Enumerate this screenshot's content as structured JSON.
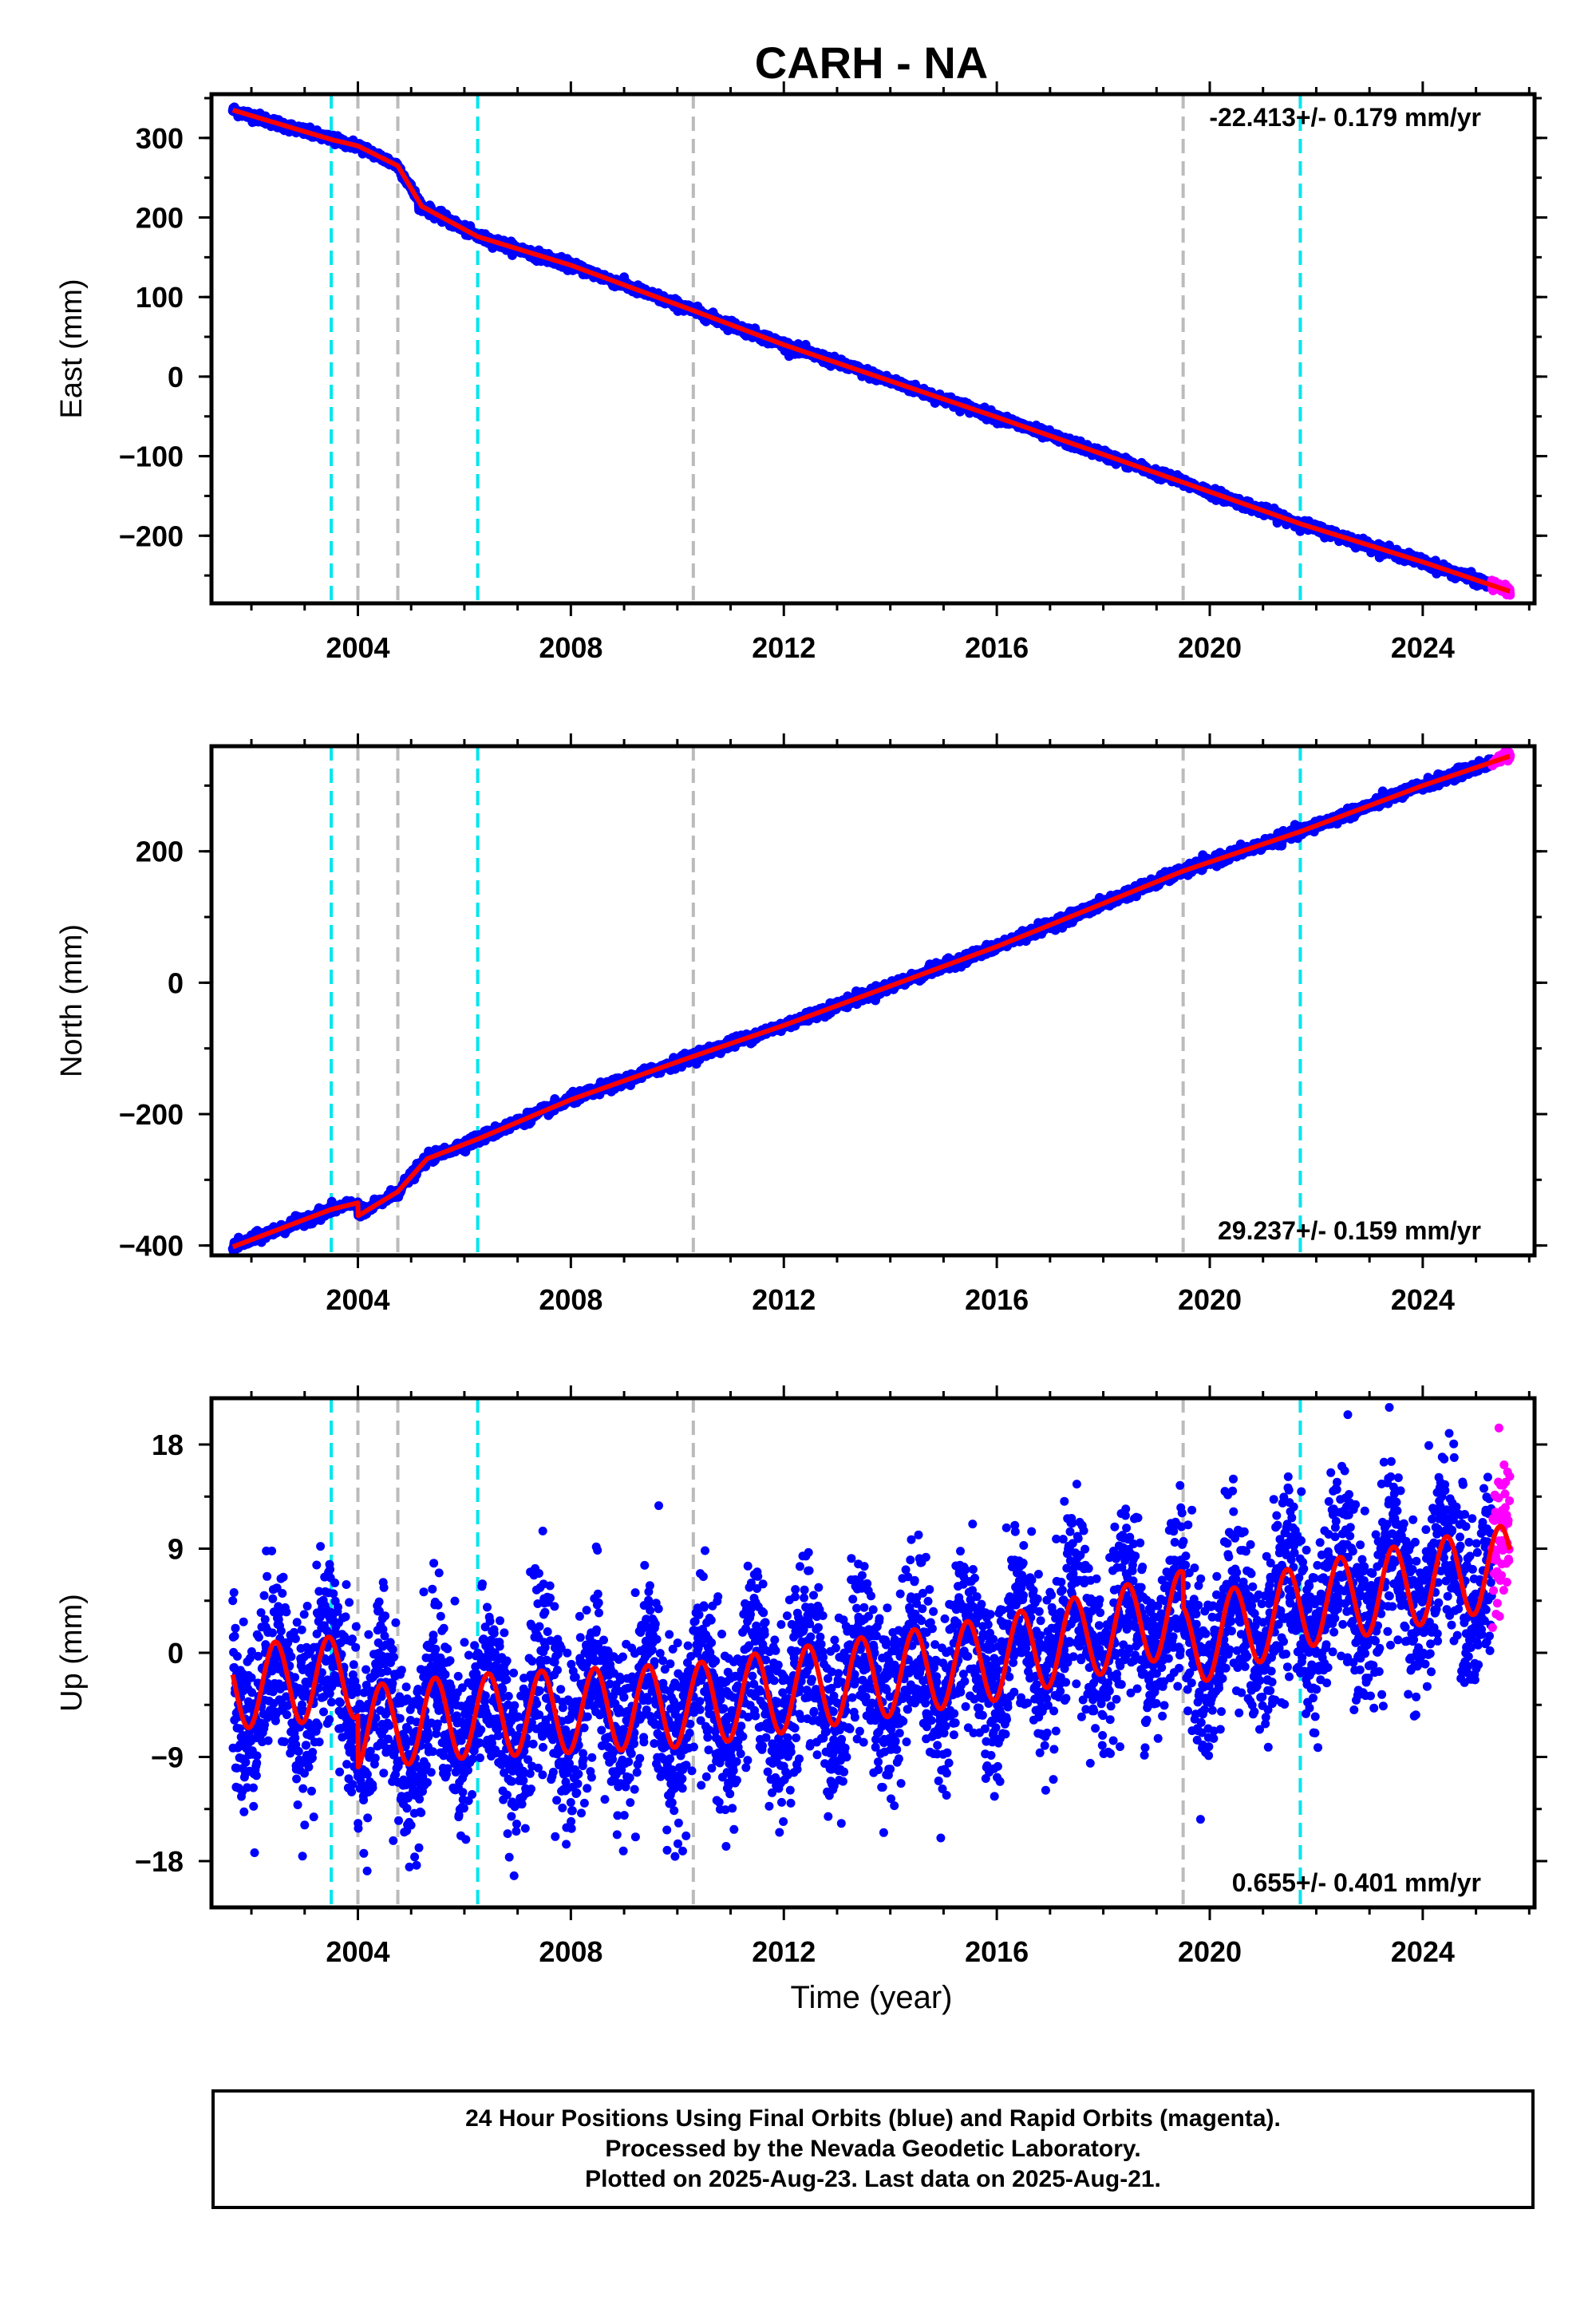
{
  "chart_data": {
    "title": "CARH - NA",
    "type": "scatter",
    "xlabel": "Time (year)",
    "x_ticks": [
      2004,
      2008,
      2012,
      2016,
      2020,
      2024
    ],
    "xlim": [
      2001.25,
      2026.1
    ],
    "x_minor_step": 1,
    "first_data_year": 2001.65,
    "last_data_year": 2025.64,
    "rapid_orbits_start_year": 2025.3,
    "vertical_markers": [
      {
        "year": 2003.5,
        "color": "#00e5ee",
        "style": "dashed"
      },
      {
        "year": 2004.0,
        "color": "#bbbbbb",
        "style": "dashed"
      },
      {
        "year": 2004.75,
        "color": "#bbbbbb",
        "style": "dashed"
      },
      {
        "year": 2006.25,
        "color": "#00e5ee",
        "style": "dashed"
      },
      {
        "year": 2010.3,
        "color": "#bbbbbb",
        "style": "dashed"
      },
      {
        "year": 2019.5,
        "color": "#bbbbbb",
        "style": "dashed"
      },
      {
        "year": 2021.7,
        "color": "#00e5ee",
        "style": "dashed"
      }
    ],
    "colors": {
      "final_orbits": "#0000ff",
      "rapid_orbits": "#ff00ff",
      "model": "#ff0000"
    },
    "panels": [
      {
        "id": "east",
        "ylabel": "East (mm)",
        "ylim": [
          -285,
          355
        ],
        "y_ticks": [
          300,
          200,
          100,
          0,
          -100,
          -200
        ],
        "y_tick_labels": [
          "300",
          "200",
          "100",
          "0",
          "−100",
          "−200"
        ],
        "y_minor_step": 50,
        "rate_text": "-22.413+/- 0.179 mm/yr",
        "rate_position": "top-right",
        "style": "band",
        "noise_mm": 3,
        "trend": {
          "x": [
            2001.65,
            2003.5,
            2004.0,
            2004.75,
            2005.2,
            2006.25,
            2008,
            2010.3,
            2012,
            2016,
            2019.5,
            2021.7,
            2024,
            2025.64
          ],
          "y": [
            335,
            298,
            290,
            265,
            214,
            176,
            140,
            83,
            40,
            -51,
            -133,
            -185,
            -233,
            -270
          ]
        },
        "series": [
          {
            "name": "Final Orbits",
            "color": "#0000ff"
          },
          {
            "name": "Rapid Orbits",
            "color": "#ff00ff"
          },
          {
            "name": "Model",
            "color": "#ff0000"
          }
        ]
      },
      {
        "id": "north",
        "ylabel": "North (mm)",
        "ylim": [
          -415,
          360
        ],
        "y_ticks": [
          200,
          0,
          -200,
          -400
        ],
        "y_tick_labels": [
          "200",
          "0",
          "−200",
          "−400"
        ],
        "y_minor_step": 100,
        "rate_text": "29.237+/- 0.159 mm/yr",
        "rate_position": "bottom-right",
        "style": "band",
        "noise_mm": 4,
        "trend": {
          "x": [
            2001.65,
            2003.5,
            2004.0,
            2004.001,
            2004.75,
            2005.3,
            2006.25,
            2008,
            2010.3,
            2012,
            2016,
            2019.5,
            2021.7,
            2024,
            2025.64
          ],
          "y": [
            -402,
            -345,
            -335,
            -355,
            -318,
            -268,
            -238,
            -178,
            -112,
            -65,
            55,
            170,
            230,
            300,
            345
          ]
        },
        "series": [
          {
            "name": "Final Orbits",
            "color": "#0000ff"
          },
          {
            "name": "Rapid Orbits",
            "color": "#ff00ff"
          },
          {
            "name": "Model",
            "color": "#ff0000"
          }
        ]
      },
      {
        "id": "up",
        "ylabel": "Up (mm)",
        "ylim": [
          -22,
          22
        ],
        "y_ticks": [
          18,
          9,
          0,
          -9,
          -18
        ],
        "y_tick_labels": [
          "18",
          "9",
          "0",
          "−9",
          "−18"
        ],
        "y_minor_step": 4.5,
        "rate_text": "0.655+/- 0.401 mm/yr",
        "rate_position": "bottom-right",
        "style": "scatter",
        "noise_mm": 3.8,
        "seasonal_amplitude_mm": 3.6,
        "trend": {
          "x": [
            2001.65,
            2004.0,
            2004.001,
            2006.0,
            2010.3,
            2016.0,
            2019.5,
            2019.501,
            2021.7,
            2025.64
          ],
          "y": [
            -3.0,
            -2.0,
            -6.5,
            -5.5,
            -4.5,
            -0.5,
            3.5,
            0.5,
            4.0,
            7.5
          ]
        },
        "series": [
          {
            "name": "Final Orbits",
            "color": "#0000ff"
          },
          {
            "name": "Rapid Orbits",
            "color": "#ff00ff"
          },
          {
            "name": "Model",
            "color": "#ff0000"
          }
        ]
      }
    ]
  },
  "footer": {
    "line1": "24 Hour Positions Using Final Orbits (blue) and Rapid Orbits (magenta).",
    "line2": "Processed by the Nevada Geodetic Laboratory.",
    "line3": "Plotted on 2025-Aug-23. Last data on 2025-Aug-21."
  }
}
